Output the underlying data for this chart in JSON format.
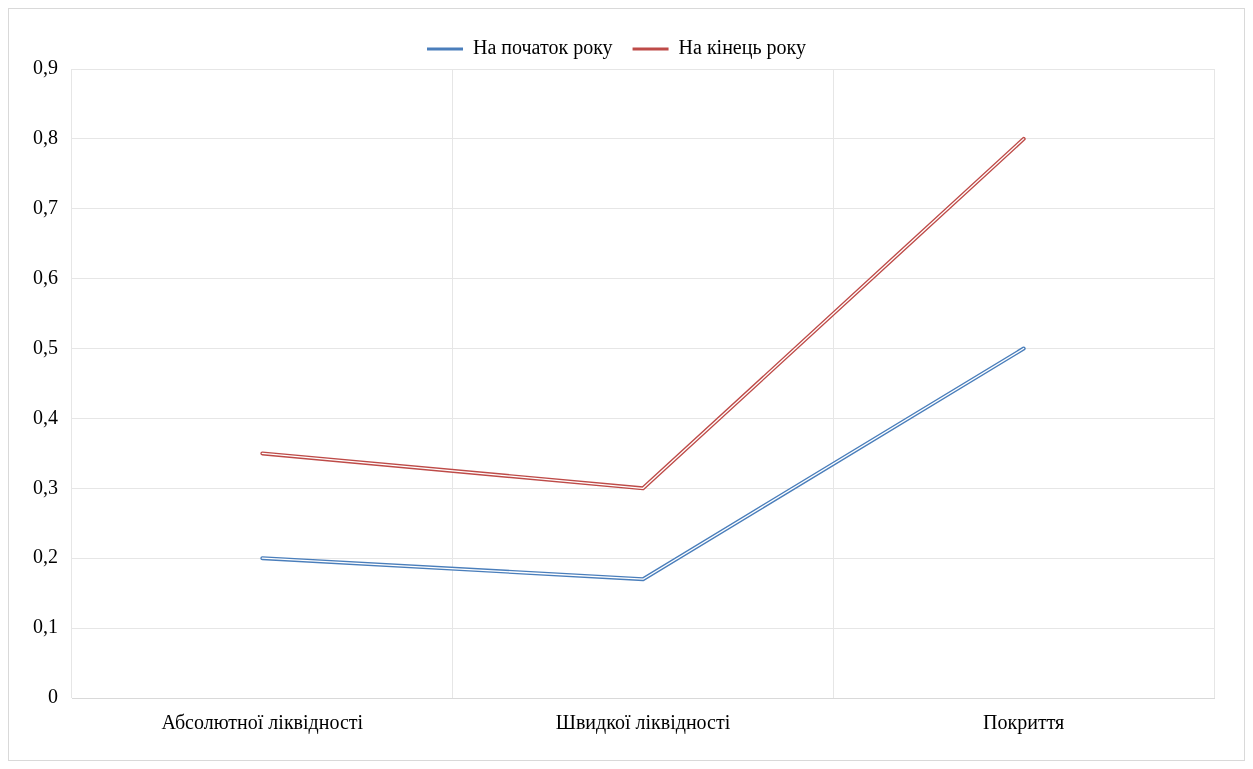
{
  "chart_data": {
    "type": "line",
    "categories": [
      "Абсолютної ліквідності",
      "Швидкої ліквідності",
      "Покриття"
    ],
    "series": [
      {
        "name": "На початок року",
        "color": "#4a7ebb",
        "values": [
          0.2,
          0.17,
          0.5
        ]
      },
      {
        "name": "На кінець року",
        "color": "#be4b48",
        "values": [
          0.35,
          0.3,
          0.8
        ]
      }
    ],
    "ylim": [
      0,
      0.9
    ],
    "yticks": [
      0,
      {
        "value": 0.1,
        "label": "0,1"
      },
      {
        "value": 0.2,
        "label": "0,2"
      },
      {
        "value": 0.3,
        "label": "0,3"
      },
      {
        "value": 0.4,
        "label": "0,4"
      },
      {
        "value": 0.5,
        "label": "0,5"
      },
      {
        "value": 0.6,
        "label": "0,6"
      },
      {
        "value": 0.7,
        "label": "0,7"
      },
      {
        "value": 0.8,
        "label": "0,8"
      },
      {
        "value": 0.9,
        "label": "0,9"
      }
    ],
    "grid": true,
    "legend": "top",
    "marker": "none",
    "line_style": "solid"
  }
}
